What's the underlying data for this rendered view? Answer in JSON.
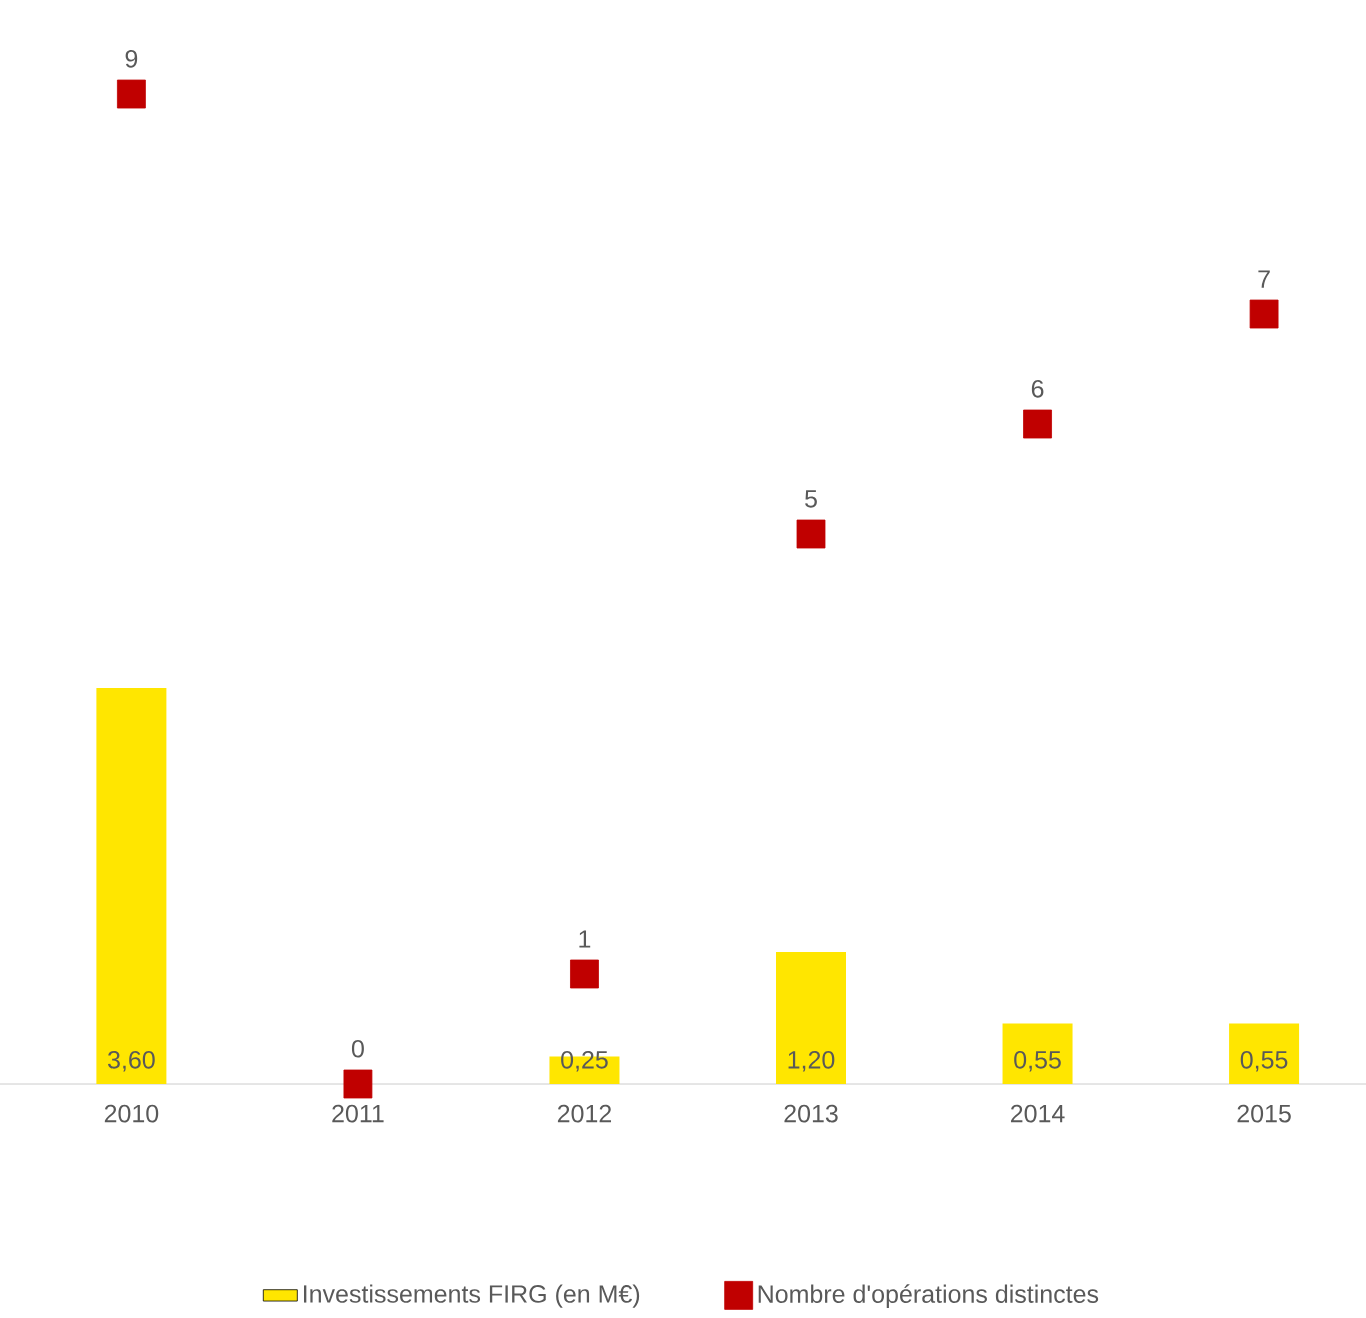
{
  "chart_data": {
    "type": "bar",
    "categories": [
      "2010",
      "2011",
      "2012",
      "2013",
      "2014",
      "2015"
    ],
    "series": [
      {
        "name": "Investissements FIRG (en M€)",
        "color": "#ffe600",
        "values": [
          3.6,
          null,
          0.25,
          1.2,
          0.55,
          0.55
        ],
        "value_labels": [
          "3,60",
          null,
          "0,25",
          "1,20",
          "0,55",
          "0,55"
        ]
      },
      {
        "name": "Nombre d'opérations distinctes",
        "type": "scatter",
        "color": "#c00000",
        "values": [
          9,
          0,
          1,
          5,
          6,
          7
        ],
        "value_labels": [
          "9",
          "0",
          "1",
          "5",
          "6",
          "7"
        ]
      }
    ],
    "marker": "square",
    "legend": "bottom"
  }
}
